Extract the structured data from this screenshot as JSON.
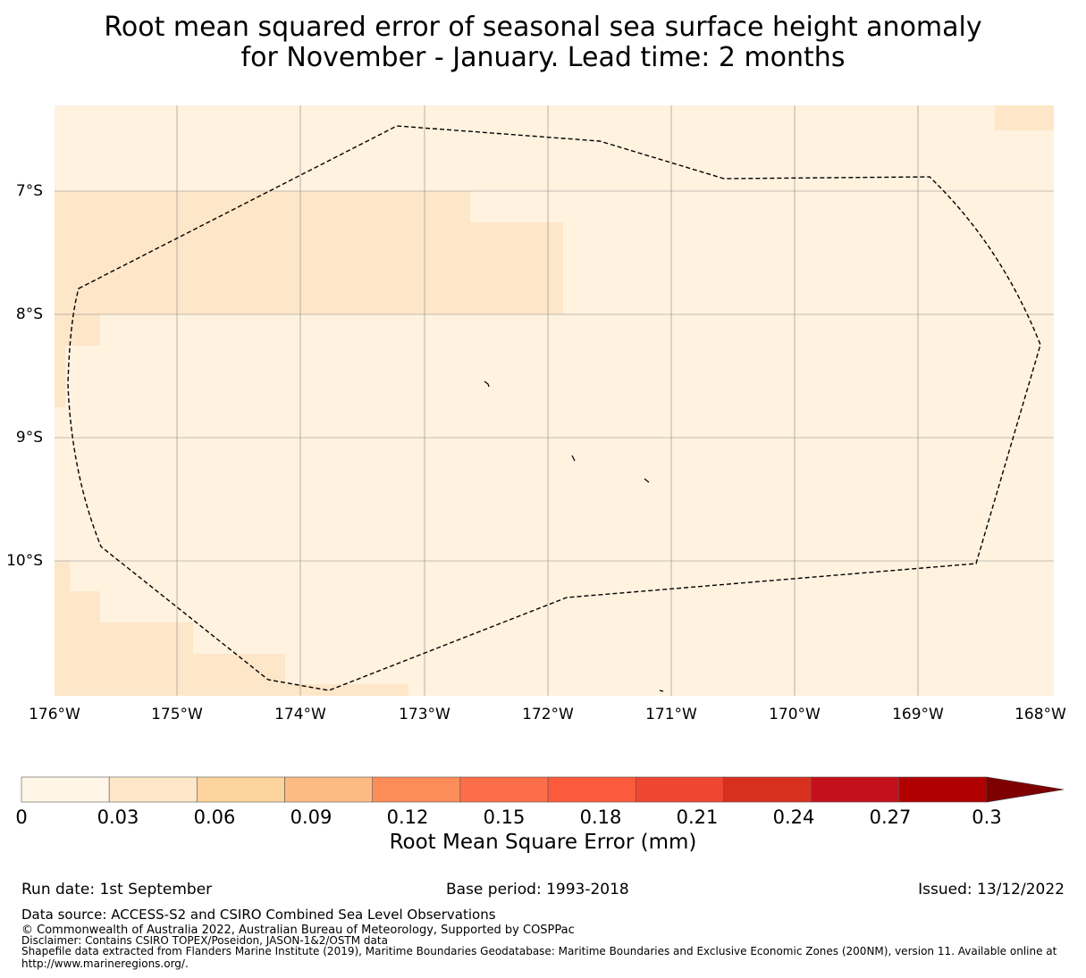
{
  "title": {
    "line1": "Root mean squared error of seasonal sea surface height anomaly",
    "line2": "for November - January. Lead time: 2 months"
  },
  "map": {
    "lat_ticks": [
      "7°S",
      "8°S",
      "9°S",
      "10°S"
    ],
    "lon_ticks": [
      "176°W",
      "175°W",
      "174°W",
      "173°W",
      "172°W",
      "171°W",
      "170°W",
      "169°W",
      "168°W"
    ],
    "gridlines": true,
    "boundary_style": "dashed",
    "fill_colors": {
      "low": "#fff2df",
      "mid": "#fee6c8"
    }
  },
  "colorbar": {
    "ticks": [
      "0",
      "0.03",
      "0.06",
      "0.09",
      "0.12",
      "0.15",
      "0.18",
      "0.21",
      "0.24",
      "0.27",
      "0.3"
    ],
    "colors": [
      "#fff5e6",
      "#fee7c9",
      "#fdd49e",
      "#fdbb84",
      "#fc8d59",
      "#fc6e48",
      "#fc5a3c",
      "#ef4632",
      "#d7301f",
      "#c4101a",
      "#b00000"
    ],
    "extend_color": "#7f0000",
    "label": "Root Mean Square Error (mm)"
  },
  "footer": {
    "run_date": "Run date: 1st September",
    "base_period": "Base period: 1993-2018",
    "issued": "Issued: 13/12/2022",
    "data_source": "Data source: ACCESS-S2 and CSIRO Combined Sea Level Observations",
    "copyright": "© Commonwealth of Australia 2022, Australian Bureau of Meteorology, Supported by COSPPac",
    "disclaimer": "Disclaimer: Contains CSIRO TOPEX/Poseidon, JASON-1&2/OSTM data",
    "shapefile_line1": "Shapefile data extracted from Flanders Marine Institute (2019), Maritime Boundaries Geodatabase: Maritime Boundaries and Exclusive Economic Zones (200NM), version 11. Available online at",
    "shapefile_line2": "http://www.marineregions.org/."
  }
}
